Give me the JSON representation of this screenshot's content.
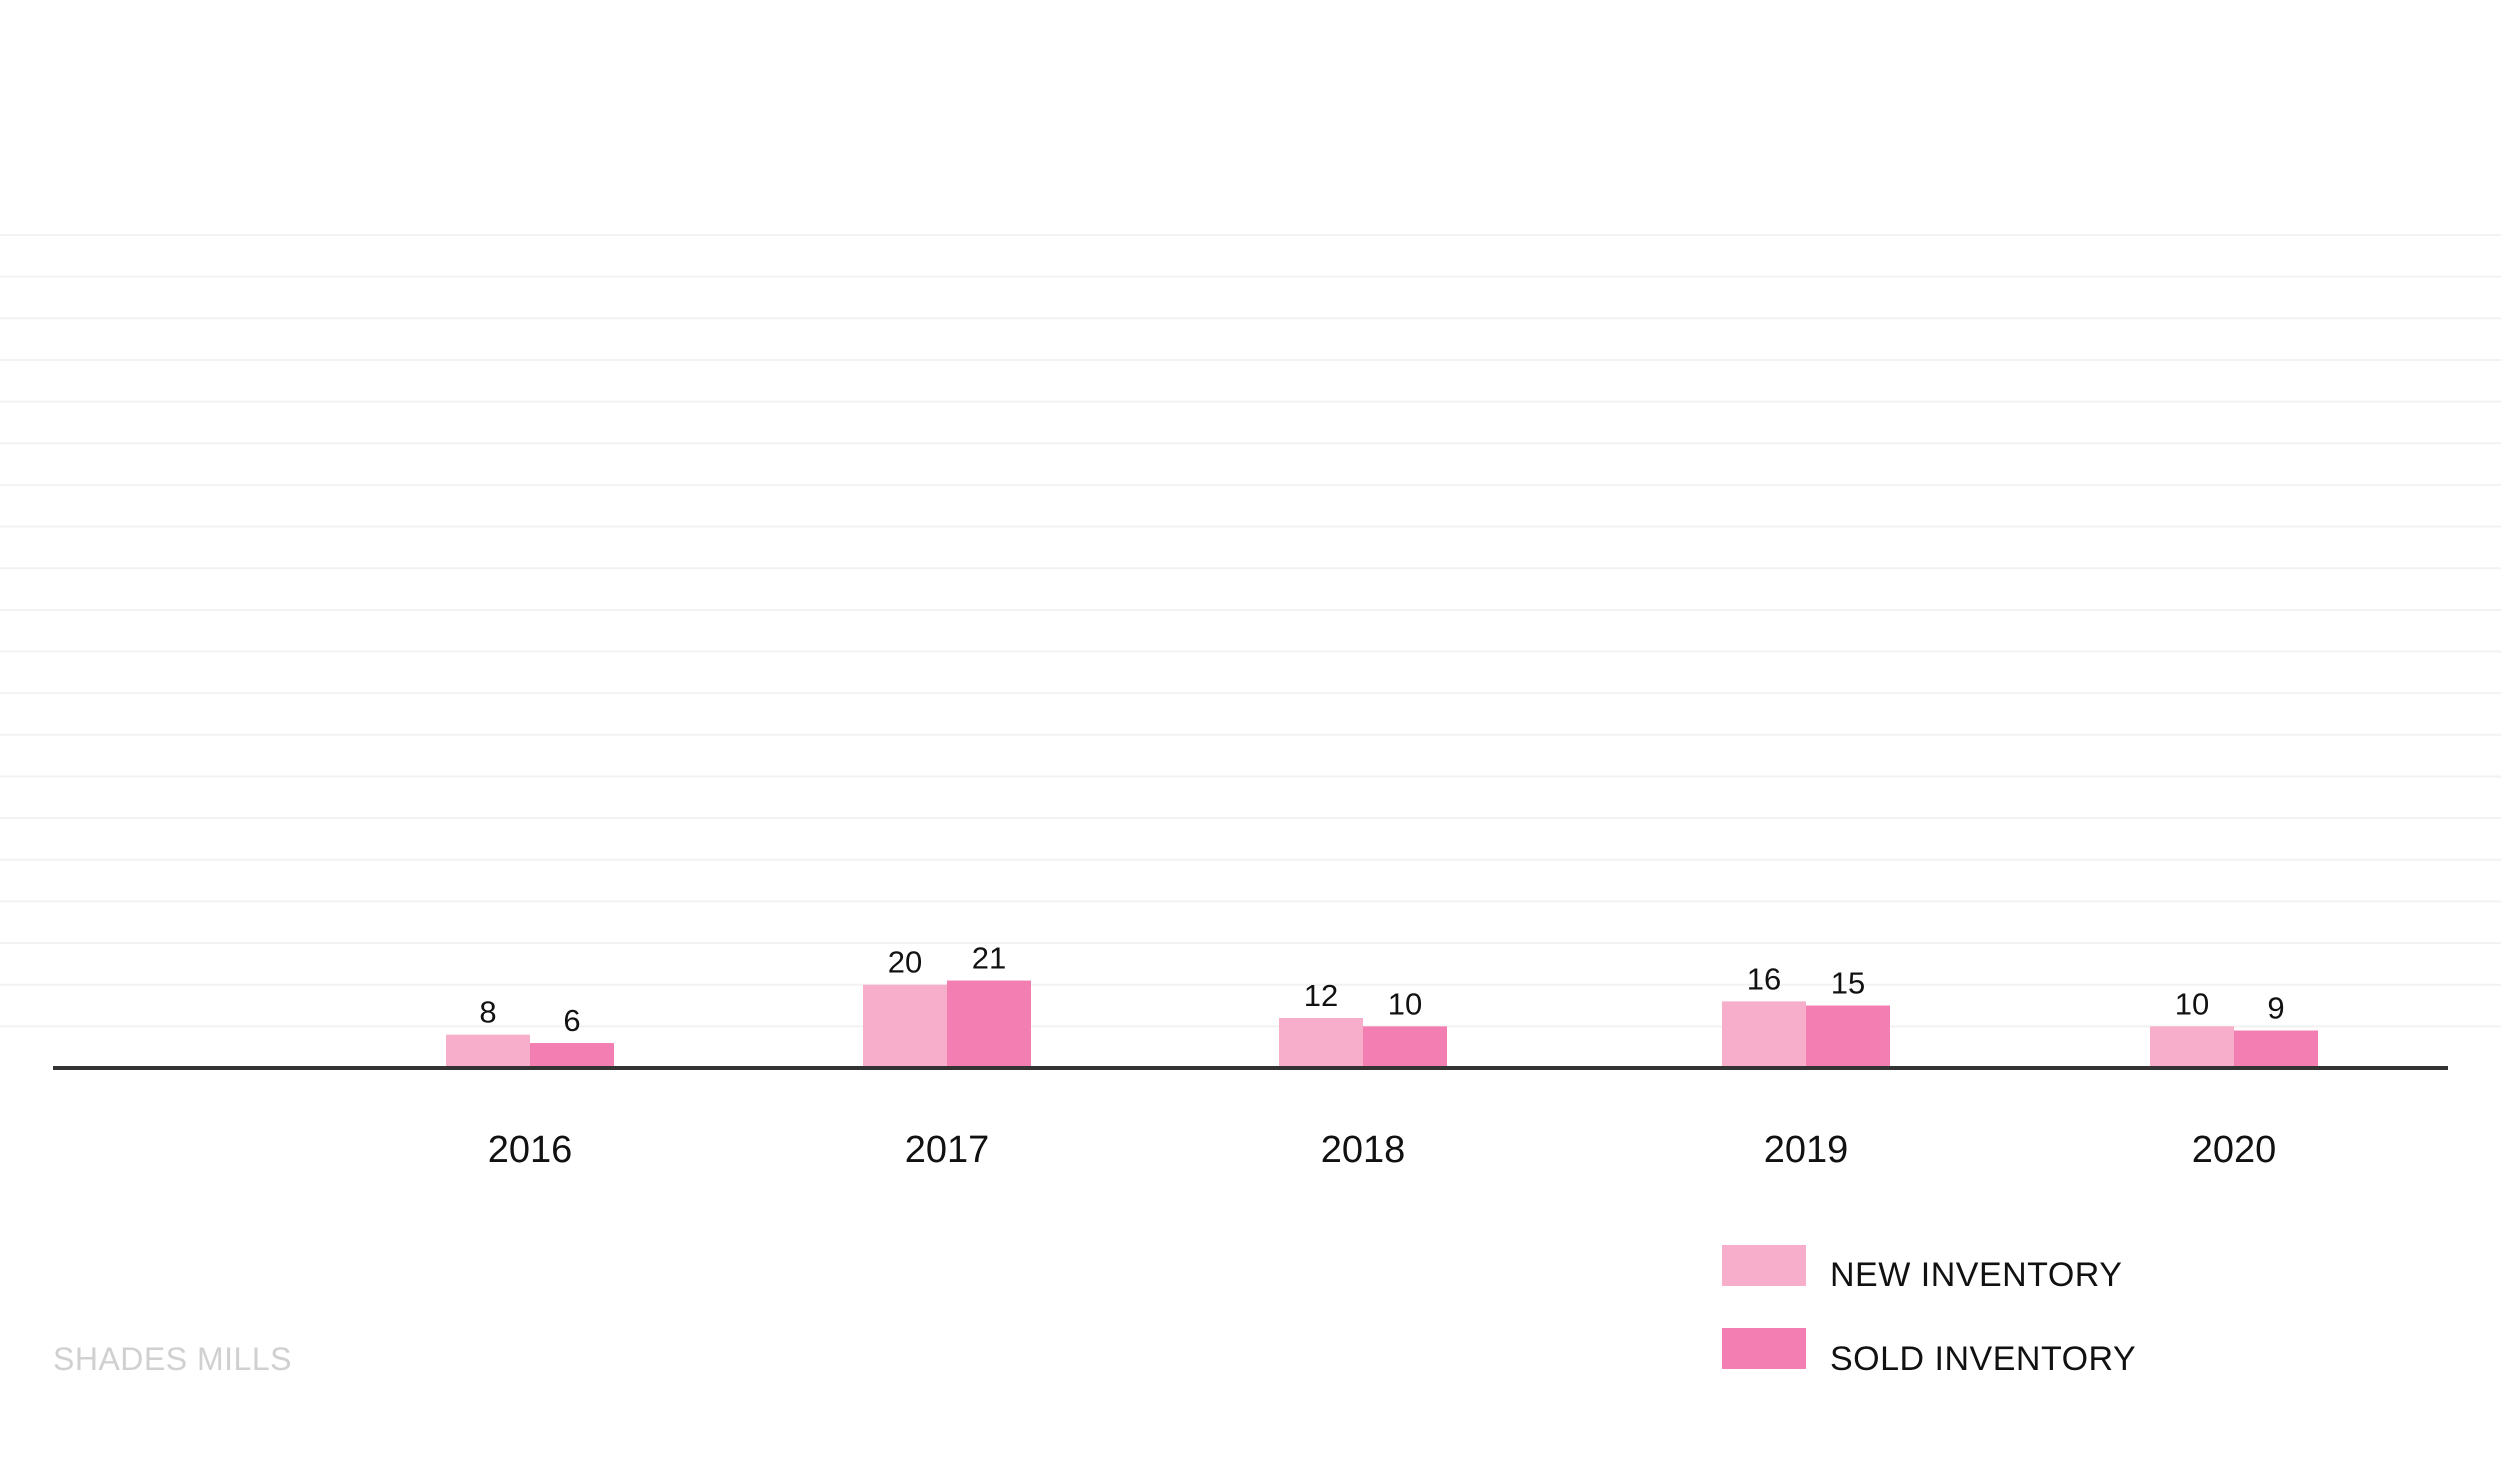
{
  "colors": {
    "new_inventory": "#f7aecb",
    "sold_inventory": "#f37fb2",
    "axis": "#333333",
    "grid": "#f2f2f2",
    "watermark": "#d0d0d0"
  },
  "watermark": "SHADES MILLS",
  "chart_data": {
    "type": "bar",
    "categories": [
      "2016",
      "2017",
      "2018",
      "2019",
      "2020"
    ],
    "series": [
      {
        "name": "NEW INVENTORY",
        "values": [
          8,
          20,
          12,
          16,
          10
        ]
      },
      {
        "name": "SOLD INVENTORY",
        "values": [
          6,
          21,
          10,
          15,
          9
        ]
      }
    ],
    "ylim": [
      0,
      200
    ],
    "grid": true,
    "legend": "bottom-right"
  }
}
